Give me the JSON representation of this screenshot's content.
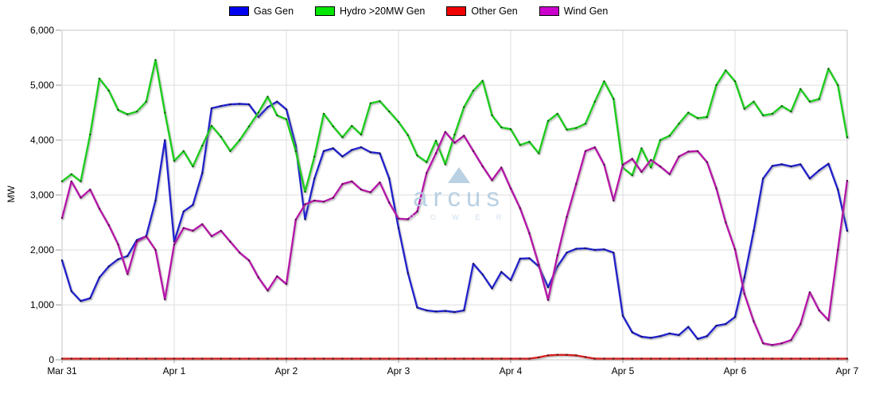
{
  "legend": {
    "items": [
      {
        "label": "Gas Gen",
        "swatch_color": "#0000f0"
      },
      {
        "label": "Hydro >20MW Gen",
        "swatch_color": "#00e600"
      },
      {
        "label": "Other Gen",
        "swatch_color": "#f00000"
      },
      {
        "label": "Wind Gen",
        "swatch_color": "#cc00cc"
      }
    ]
  },
  "y_axis": {
    "title": "MW",
    "tick_labels": [
      "0",
      "1,000",
      "2,000",
      "3,000",
      "4,000",
      "5,000",
      "6,000"
    ],
    "min": 0,
    "max": 6000,
    "step": 1000
  },
  "x_axis": {
    "tick_labels": [
      "Mar 31",
      "Apr 1",
      "Apr 2",
      "Apr 3",
      "Apr 4",
      "Apr 5",
      "Apr 6",
      "Apr 7"
    ]
  },
  "watermark": {
    "brand": "arcus",
    "sub": "P O W E R"
  },
  "colors": {
    "grid": "#dedede",
    "plot_border": "#c4c4c4",
    "tick": "#9a9a9a",
    "axis_text": "#000000"
  },
  "chart_data": {
    "type": "line",
    "title": "",
    "xlabel": "",
    "ylabel": "MW",
    "ylim": [
      0,
      6000
    ],
    "grid": true,
    "legend_position": "top-center",
    "x_unit": "hours since Mar 31 00:00",
    "duration_hours": 168,
    "sample_interval_hours": 2,
    "day_tick_labels": [
      "Mar 31",
      "Apr 1",
      "Apr 2",
      "Apr 3",
      "Apr 4",
      "Apr 5",
      "Apr 6",
      "Apr 7"
    ],
    "series": [
      {
        "name": "Gas Gen",
        "color": "#2323cc",
        "values": [
          1810,
          1250,
          1070,
          1120,
          1500,
          1700,
          1830,
          1890,
          2180,
          2250,
          2900,
          4000,
          2150,
          2700,
          2820,
          3400,
          4580,
          4620,
          4650,
          4660,
          4650,
          4420,
          4600,
          4700,
          4560,
          3900,
          2560,
          3300,
          3800,
          3850,
          3700,
          3820,
          3870,
          3780,
          3760,
          3300,
          2400,
          1580,
          950,
          900,
          880,
          890,
          870,
          900,
          1750,
          1550,
          1300,
          1600,
          1450,
          1840,
          1850,
          1700,
          1320,
          1700,
          1950,
          2020,
          2030,
          2000,
          2010,
          1950,
          800,
          500,
          420,
          400,
          430,
          480,
          450,
          600,
          380,
          430,
          620,
          650,
          780,
          1500,
          2350,
          3300,
          3530,
          3560,
          3520,
          3560,
          3300,
          3450,
          3570,
          3100,
          2350
        ]
      },
      {
        "name": "Hydro >20MW Gen",
        "color": "#1ecc1e",
        "values": [
          3250,
          3380,
          3250,
          4100,
          5120,
          4900,
          4550,
          4470,
          4520,
          4700,
          5460,
          4500,
          3620,
          3800,
          3520,
          3900,
          4260,
          4060,
          3800,
          4000,
          4250,
          4500,
          4790,
          4450,
          4380,
          3800,
          3060,
          3700,
          4480,
          4250,
          4050,
          4260,
          4100,
          4670,
          4710,
          4520,
          4330,
          4090,
          3720,
          3600,
          3990,
          3560,
          4100,
          4600,
          4900,
          5080,
          4450,
          4230,
          4200,
          3910,
          3970,
          3760,
          4350,
          4480,
          4190,
          4220,
          4300,
          4700,
          5070,
          4750,
          3500,
          3360,
          3850,
          3500,
          4000,
          4080,
          4300,
          4500,
          4400,
          4420,
          5000,
          5270,
          5070,
          4570,
          4700,
          4450,
          4480,
          4620,
          4520,
          4930,
          4700,
          4750,
          5300,
          5000,
          4050
        ]
      },
      {
        "name": "Other Gen",
        "color": "#d42020",
        "values": [
          20,
          20,
          20,
          20,
          20,
          20,
          20,
          20,
          20,
          20,
          20,
          20,
          20,
          20,
          20,
          20,
          20,
          20,
          20,
          20,
          20,
          20,
          20,
          20,
          20,
          20,
          20,
          20,
          20,
          20,
          20,
          20,
          20,
          20,
          20,
          20,
          20,
          20,
          20,
          20,
          20,
          20,
          20,
          20,
          20,
          20,
          20,
          20,
          20,
          20,
          20,
          45,
          80,
          90,
          90,
          80,
          50,
          20,
          20,
          20,
          20,
          20,
          20,
          20,
          20,
          20,
          20,
          20,
          20,
          20,
          20,
          20,
          20,
          20,
          20,
          20,
          20,
          20,
          20,
          20,
          20,
          20,
          20,
          20,
          20
        ]
      },
      {
        "name": "Wind Gen",
        "color": "#b514a8",
        "values": [
          2580,
          3250,
          2950,
          3100,
          2750,
          2450,
          2100,
          1560,
          2150,
          2250,
          2000,
          1100,
          2100,
          2400,
          2350,
          2470,
          2250,
          2350,
          2150,
          1950,
          1810,
          1500,
          1260,
          1520,
          1380,
          2550,
          2830,
          2900,
          2880,
          2950,
          3200,
          3250,
          3100,
          3050,
          3230,
          2860,
          2570,
          2560,
          2700,
          3400,
          3760,
          4150,
          3950,
          4080,
          3800,
          3520,
          3270,
          3500,
          3120,
          2760,
          2300,
          1730,
          1090,
          1900,
          2600,
          3200,
          3800,
          3870,
          3550,
          2900,
          3550,
          3660,
          3420,
          3640,
          3520,
          3380,
          3700,
          3790,
          3800,
          3600,
          3120,
          2500,
          2010,
          1200,
          700,
          300,
          270,
          300,
          360,
          650,
          1230,
          900,
          720,
          2000,
          3260
        ]
      }
    ]
  }
}
